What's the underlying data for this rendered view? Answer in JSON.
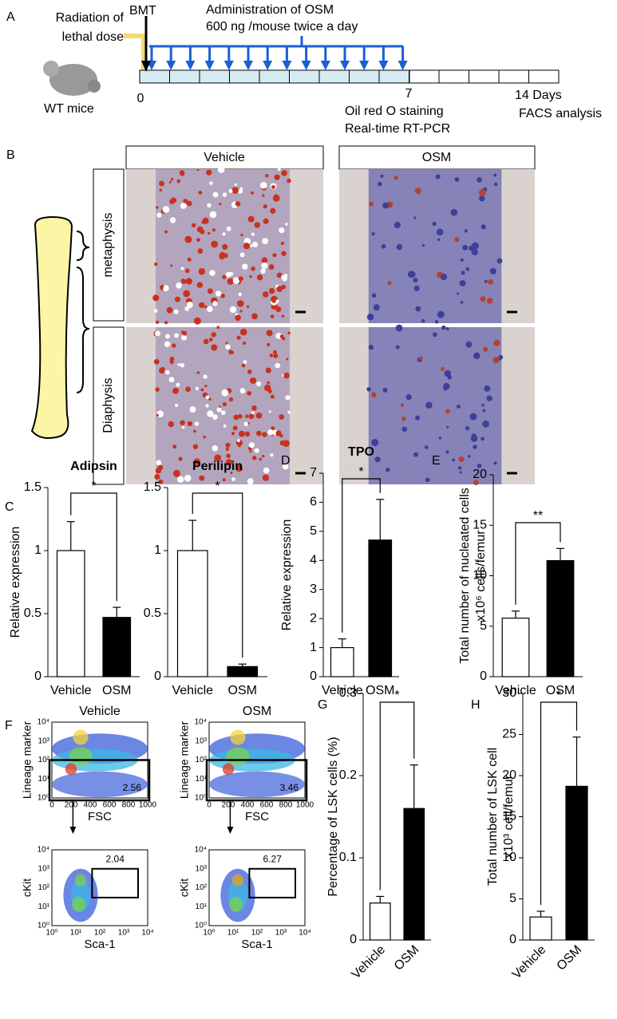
{
  "panel_labels": [
    "A",
    "B",
    "C",
    "D",
    "E",
    "F",
    "G",
    "H"
  ],
  "panels": {
    "A": {
      "radiation": [
        "Radiation of",
        "lethal dose"
      ],
      "bmt": "BMT",
      "administration": "Administration of OSM",
      "dose": "600 ng /mouse twice a day",
      "mice": "WT mice",
      "day0": "0",
      "day7": "7",
      "day14": "14 Days",
      "day7_assays": [
        "Oil red O staining",
        "Real-time RT-PCR"
      ],
      "day14_assay": "FACS analysis"
    },
    "B": {
      "columns": [
        "Vehicle",
        "OSM"
      ],
      "rows": [
        "metaphysis",
        "Diaphysis"
      ]
    },
    "F": {
      "columns": [
        "Vehicle",
        "OSM"
      ],
      "top_ylabel": "Lineage marker",
      "top_xlabel": "FSC",
      "bottom_ylabel": "cKit",
      "bottom_xlabel": "Sca-1",
      "log_ticks": [
        "10⁰",
        "10¹",
        "10²",
        "10³",
        "10⁴"
      ],
      "fsc_ticks": [
        "0",
        "200",
        "400",
        "600",
        "800",
        "1000"
      ],
      "top_gates": [
        "2.56",
        "3.46"
      ],
      "bottom_gates": [
        "2.04",
        "6.27"
      ]
    }
  },
  "chart_data": [
    {
      "type": "bar",
      "title": "Adipsin",
      "ylabel": [
        "Relative expression"
      ],
      "categories": [
        "Vehicle",
        "OSM"
      ],
      "values": [
        1,
        0.47
      ],
      "errors": [
        0.23,
        0.08
      ],
      "colors": [
        "#ffffff",
        "#000000"
      ],
      "ylim": [
        0,
        1.5
      ],
      "yticks": [
        0,
        0.5,
        1,
        1.5
      ],
      "annotation": "*"
    },
    {
      "type": "bar",
      "title": "Perilipin",
      "categories": [
        "Vehicle",
        "OSM"
      ],
      "values": [
        1,
        0.08
      ],
      "errors": [
        0.24,
        0.02
      ],
      "colors": [
        "#ffffff",
        "#000000"
      ],
      "ylim": [
        0,
        1.5
      ],
      "yticks": [
        0,
        0.5,
        1,
        1.5
      ],
      "annotation": "*"
    },
    {
      "type": "bar",
      "title": "TPO",
      "ylabel": [
        "Relative expression"
      ],
      "categories": [
        "Vehicle",
        "OSM"
      ],
      "values": [
        1,
        4.7
      ],
      "errors": [
        0.3,
        1.4
      ],
      "colors": [
        "#ffffff",
        "#000000"
      ],
      "ylim": [
        0,
        7
      ],
      "yticks": [
        0,
        1,
        2,
        3,
        4,
        5,
        6,
        7
      ],
      "annotation": "*"
    },
    {
      "type": "bar",
      "ylabel": [
        "Total number of nucleated cells",
        "x10⁶ cells/femur"
      ],
      "categories": [
        "Vehicle",
        "OSM"
      ],
      "values": [
        5.8,
        11.5
      ],
      "errors": [
        0.7,
        1.2
      ],
      "colors": [
        "#ffffff",
        "#000000"
      ],
      "ylim": [
        0,
        20
      ],
      "yticks": [
        0,
        5,
        10,
        15,
        20
      ],
      "annotation": "**"
    },
    {
      "type": "bar",
      "ylabel": [
        "Percentage of LSK cells (%)"
      ],
      "categories": [
        "Vehicle",
        "OSM"
      ],
      "values": [
        0.045,
        0.16
      ],
      "errors": [
        0.008,
        0.053
      ],
      "colors": [
        "#ffffff",
        "#000000"
      ],
      "ylim": [
        0,
        0.3
      ],
      "yticks": [
        0,
        0.1,
        0.2,
        0.3
      ],
      "annotation": "*"
    },
    {
      "type": "bar",
      "ylabel": [
        "Total number of LSK cell",
        "x10³ cell/femur"
      ],
      "categories": [
        "Vehicle",
        "OSM"
      ],
      "values": [
        2.8,
        18.7
      ],
      "errors": [
        0.7,
        6
      ],
      "colors": [
        "#ffffff",
        "#000000"
      ],
      "ylim": [
        0,
        30
      ],
      "yticks": [
        0,
        5,
        10,
        15,
        20,
        25,
        30
      ],
      "annotation": "*"
    }
  ]
}
